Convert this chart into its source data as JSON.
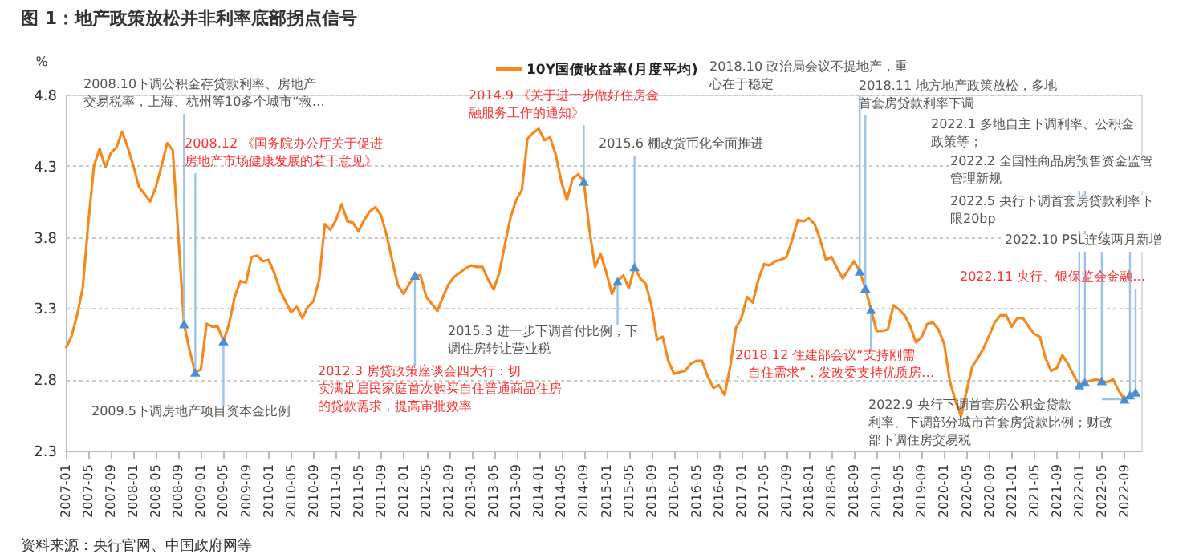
{
  "chart_data": {
    "type": "line",
    "title": "图 1：地产政策放松并非利率底部拐点信号",
    "ylabel": "%",
    "x": [
      "2007-01",
      "2007-02",
      "2007-03",
      "2007-04",
      "2007-05",
      "2007-06",
      "2007-07",
      "2007-08",
      "2007-09",
      "2007-10",
      "2007-11",
      "2007-12",
      "2008-01",
      "2008-02",
      "2008-03",
      "2008-04",
      "2008-05",
      "2008-06",
      "2008-07",
      "2008-08",
      "2008-09",
      "2008-10",
      "2008-11",
      "2008-12",
      "2009-01",
      "2009-02",
      "2009-03",
      "2009-04",
      "2009-05",
      "2009-06",
      "2009-07",
      "2009-08",
      "2009-09",
      "2009-10",
      "2009-11",
      "2009-12",
      "2010-01",
      "2010-02",
      "2010-03",
      "2010-04",
      "2010-05",
      "2010-06",
      "2010-07",
      "2010-08",
      "2010-09",
      "2010-10",
      "2010-11",
      "2010-12",
      "2011-01",
      "2011-02",
      "2011-03",
      "2011-04",
      "2011-05",
      "2011-06",
      "2011-07",
      "2011-08",
      "2011-09",
      "2011-10",
      "2011-11",
      "2011-12",
      "2012-01",
      "2012-02",
      "2012-03",
      "2012-04",
      "2012-05",
      "2012-06",
      "2012-07",
      "2012-08",
      "2012-09",
      "2012-10",
      "2012-11",
      "2012-12",
      "2013-01",
      "2013-02",
      "2013-03",
      "2013-04",
      "2013-05",
      "2013-06",
      "2013-07",
      "2013-08",
      "2013-09",
      "2013-10",
      "2013-11",
      "2013-12",
      "2014-01",
      "2014-02",
      "2014-03",
      "2014-04",
      "2014-05",
      "2014-06",
      "2014-07",
      "2014-08",
      "2014-09",
      "2014-10",
      "2014-11",
      "2014-12",
      "2015-01",
      "2015-02",
      "2015-03",
      "2015-04",
      "2015-05",
      "2015-06",
      "2015-07",
      "2015-08",
      "2015-09",
      "2015-10",
      "2015-11",
      "2015-12",
      "2016-01",
      "2016-02",
      "2016-03",
      "2016-04",
      "2016-05",
      "2016-06",
      "2016-07",
      "2016-08",
      "2016-09",
      "2016-10",
      "2016-11",
      "2016-12",
      "2017-01",
      "2017-02",
      "2017-03",
      "2017-04",
      "2017-05",
      "2017-06",
      "2017-07",
      "2017-08",
      "2017-09",
      "2017-10",
      "2017-11",
      "2017-12",
      "2018-01",
      "2018-02",
      "2018-03",
      "2018-04",
      "2018-05",
      "2018-06",
      "2018-07",
      "2018-08",
      "2018-09",
      "2018-10",
      "2018-11",
      "2018-12",
      "2019-01",
      "2019-02",
      "2019-03",
      "2019-04",
      "2019-05",
      "2019-06",
      "2019-07",
      "2019-08",
      "2019-09",
      "2019-10",
      "2019-11",
      "2019-12",
      "2020-01",
      "2020-02",
      "2020-03",
      "2020-04",
      "2020-05",
      "2020-06",
      "2020-07",
      "2020-08",
      "2020-09",
      "2020-10",
      "2020-11",
      "2020-12",
      "2021-01",
      "2021-02",
      "2021-03",
      "2021-04",
      "2021-05",
      "2021-06",
      "2021-07",
      "2021-08",
      "2021-09",
      "2021-10",
      "2021-11",
      "2021-12",
      "2022-01",
      "2022-02",
      "2022-03",
      "2022-04",
      "2022-05",
      "2022-06",
      "2022-07",
      "2022-08",
      "2022-09",
      "2022-10",
      "2022-11"
    ],
    "series": [
      {
        "name": "10Y国债收益率(月度平均)",
        "color": "#f5891f",
        "values": [
          3.02,
          3.1,
          3.25,
          3.44,
          3.9,
          4.3,
          4.42,
          4.29,
          4.39,
          4.43,
          4.54,
          4.43,
          4.3,
          4.15,
          4.1,
          4.05,
          4.15,
          4.3,
          4.46,
          4.41,
          3.8,
          3.19,
          3.0,
          2.85,
          2.87,
          3.19,
          3.17,
          3.17,
          3.07,
          3.19,
          3.38,
          3.49,
          3.48,
          3.66,
          3.67,
          3.63,
          3.64,
          3.55,
          3.43,
          3.35,
          3.27,
          3.31,
          3.23,
          3.31,
          3.35,
          3.5,
          3.89,
          3.85,
          3.92,
          4.03,
          3.91,
          3.9,
          3.84,
          3.92,
          3.98,
          4.01,
          3.95,
          3.81,
          3.63,
          3.46,
          3.4,
          3.47,
          3.53,
          3.53,
          3.38,
          3.33,
          3.28,
          3.38,
          3.47,
          3.52,
          3.55,
          3.58,
          3.6,
          3.59,
          3.59,
          3.5,
          3.43,
          3.55,
          3.75,
          3.94,
          4.06,
          4.13,
          4.49,
          4.53,
          4.56,
          4.48,
          4.5,
          4.38,
          4.19,
          4.06,
          4.21,
          4.24,
          4.19,
          3.85,
          3.59,
          3.68,
          3.55,
          3.4,
          3.49,
          3.53,
          3.44,
          3.59,
          3.51,
          3.47,
          3.32,
          3.08,
          3.1,
          2.93,
          2.84,
          2.85,
          2.86,
          2.91,
          2.93,
          2.93,
          2.82,
          2.74,
          2.76,
          2.69,
          2.89,
          3.16,
          3.23,
          3.38,
          3.34,
          3.5,
          3.61,
          3.6,
          3.63,
          3.64,
          3.66,
          3.78,
          3.92,
          3.91,
          3.93,
          3.89,
          3.78,
          3.64,
          3.66,
          3.58,
          3.51,
          3.57,
          3.63,
          3.56,
          3.44,
          3.29,
          3.14,
          3.14,
          3.15,
          3.32,
          3.29,
          3.25,
          3.17,
          3.06,
          3.1,
          3.19,
          3.2,
          3.15,
          3.05,
          2.79,
          2.65,
          2.54,
          2.72,
          2.89,
          2.95,
          3.02,
          3.11,
          3.2,
          3.25,
          3.25,
          3.17,
          3.23,
          3.23,
          3.17,
          3.12,
          3.1,
          2.95,
          2.86,
          2.88,
          2.97,
          2.91,
          2.83,
          2.76,
          2.78,
          2.79,
          2.8,
          2.79,
          2.78,
          2.8,
          2.72,
          2.66,
          2.69,
          2.71
        ]
      }
    ],
    "xlim": [
      "2007-01",
      "2022-12"
    ],
    "xticks": [
      "2007-01",
      "2007-05",
      "2007-09",
      "2008-01",
      "2008-05",
      "2008-09",
      "2009-01",
      "2009-05",
      "2009-09",
      "2010-01",
      "2010-05",
      "2010-09",
      "2011-01",
      "2011-05",
      "2011-09",
      "2012-01",
      "2012-05",
      "2012-09",
      "2013-01",
      "2013-05",
      "2013-09",
      "2014-01",
      "2014-05",
      "2014-09",
      "2015-01",
      "2015-05",
      "2015-09",
      "2016-01",
      "2016-05",
      "2016-09",
      "2017-01",
      "2017-05",
      "2017-09",
      "2018-01",
      "2018-05",
      "2018-09",
      "2019-01",
      "2019-05",
      "2019-09",
      "2020-01",
      "2020-05",
      "2020-09",
      "2021-01",
      "2021-05",
      "2021-09",
      "2022-01",
      "2022-05",
      "2022-09"
    ],
    "ylim": [
      2.3,
      4.8
    ],
    "yticks": [
      2.3,
      2.8,
      3.3,
      3.8,
      4.3,
      4.8
    ],
    "grid": "y",
    "legend": "top",
    "annotations": [
      {
        "text": "2008.10下调公积金存贷款利率、房地产交易税率，上海、杭州等10多个城市“救…",
        "x": "2008-10",
        "y": 3.19
      },
      {
        "text": "2008.12 《国务院办公厅关于促进房地产市场健康发展的若干意见》",
        "x": "2008-12",
        "y": 2.85
      },
      {
        "text": "2009.5下调房地产项目资本金比例",
        "x": "2009-05",
        "y": 3.07
      },
      {
        "text": "2012.3 房贷政策座谈会四大行：切实满足居民家庭首次购买自住普通商品住房的贷款需求，提高审批效率",
        "x": "2012-03",
        "y": 3.53
      },
      {
        "text": "2014.9 《关于进一步做好住房金融服务工作的通知》",
        "x": "2014-09",
        "y": 4.19
      },
      {
        "text": "2015.3 进一步下调首付比例，下调住房转让营业税",
        "x": "2015-03",
        "y": 3.49
      },
      {
        "text": "2015.6 棚改货币化全面推进",
        "x": "2015-06",
        "y": 3.59
      },
      {
        "text": "2018.10 政治局会议不提地产，重心在于稳定",
        "x": "2018-10",
        "y": 3.56
      },
      {
        "text": "2018.11 地方地产政策放松，多地首套房贷款利率下调",
        "x": "2018-11",
        "y": 3.44
      },
      {
        "text": "2018.12 住建部会议“支持刚需、自住需求”，发改委支持优质房…",
        "x": "2018-12",
        "y": 3.29
      },
      {
        "text": "2022.1 多地自主下调利率、公积金政策等；",
        "x": "2022-01",
        "y": 2.76
      },
      {
        "text": "2022.2 全国性商品房预售资金监管管理新规",
        "x": "2022-02",
        "y": 2.78
      },
      {
        "text": "2022.5 央行下调首套房贷款利率下限20bp",
        "x": "2022-05",
        "y": 2.79
      },
      {
        "text": "2022.9 央行下调首套房公积金贷款利率、下调部分城市首套房贷款比例；财政部下调住房交易税",
        "x": "2022-09",
        "y": 2.66
      },
      {
        "text": "2022.10 PSL连续两月新增",
        "x": "2022-10",
        "y": 2.69
      },
      {
        "text": "2022.11 央行、银保监会金融…",
        "x": "2022-11",
        "y": 2.71
      },
      "资料来源：央行官网、中国政府网等"
    ]
  }
}
